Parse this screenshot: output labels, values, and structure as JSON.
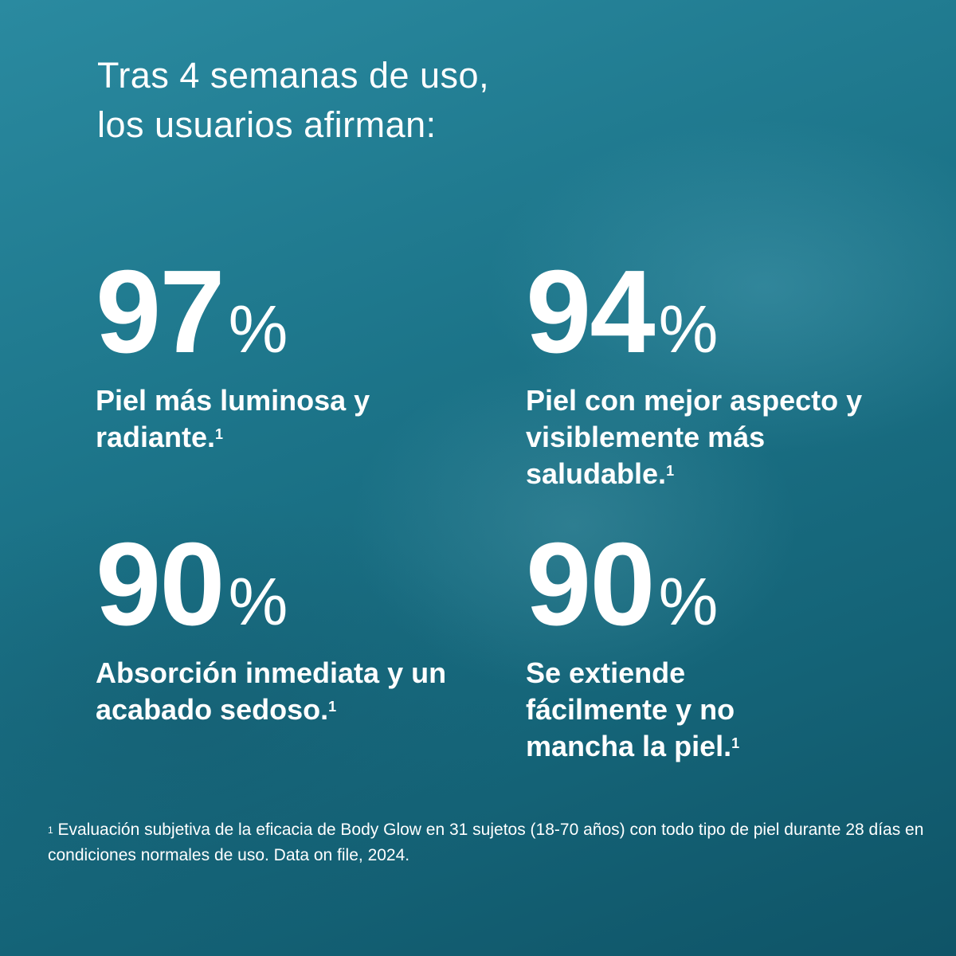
{
  "title": {
    "line1": "Tras 4 semanas de uso,",
    "line2": "los usuarios afirman:"
  },
  "stats": [
    {
      "value": "97",
      "unit": "%",
      "label": "Piel más luminosa y radiante.",
      "ref": "1"
    },
    {
      "value": "94",
      "unit": "%",
      "label": "Piel con mejor aspecto y visiblemente más saludable.",
      "ref": "1"
    },
    {
      "value": "90",
      "unit": "%",
      "label": "Absorción inmediata y un acabado sedoso.",
      "ref": "1"
    },
    {
      "value": "90",
      "unit": "%",
      "label": "Se extiende fácilmente y no mancha la piel.",
      "ref": "1"
    }
  ],
  "footnote": {
    "ref": "1",
    "text": "Evaluación subjetiva de la eficacia de Body Glow en 31 sujetos (18-70 años) con todo tipo de piel durante 28 días en condiciones normales de uso.  Data on file, 2024."
  },
  "colors": {
    "background": "#1c7489",
    "text": "#ffffff"
  }
}
